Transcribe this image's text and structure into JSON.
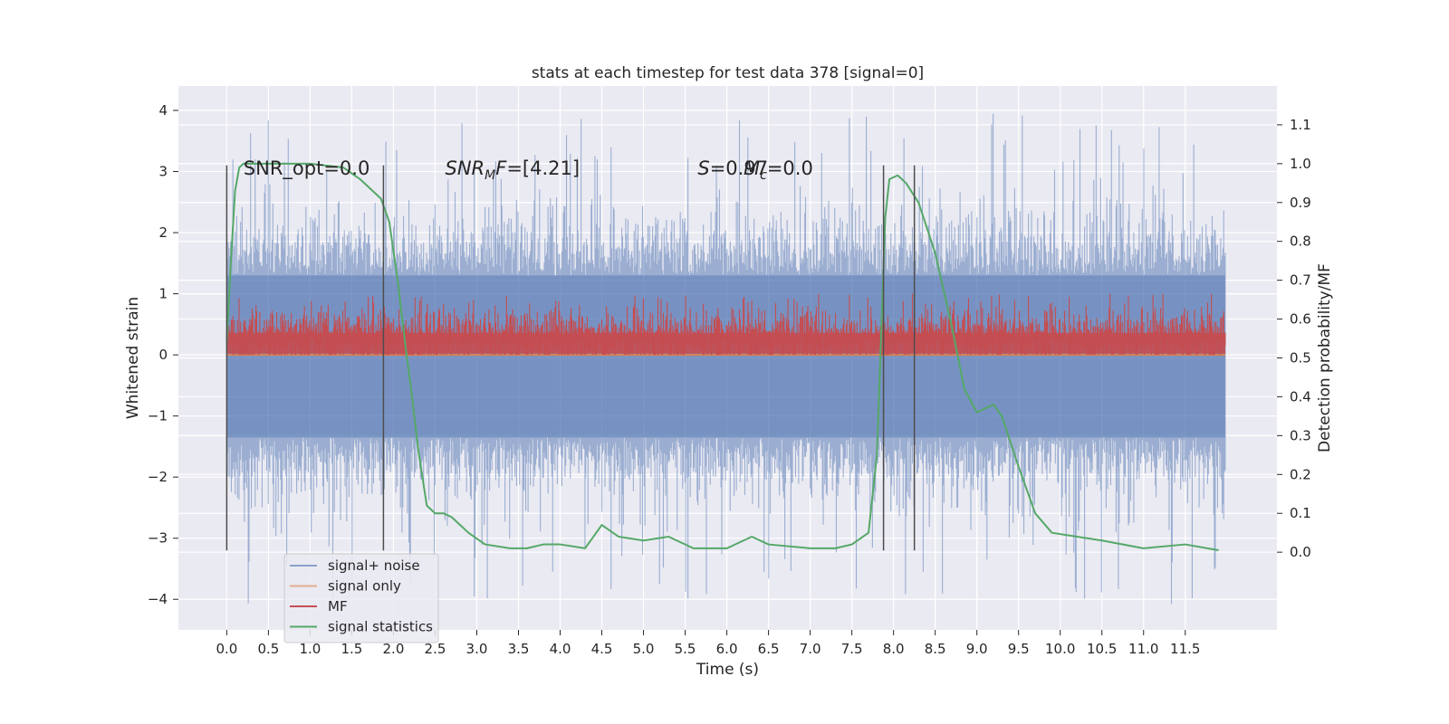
{
  "chart_data": {
    "type": "line",
    "title": "stats at each timestep for test data 378 [signal=0]",
    "xlabel": "Time (s)",
    "ylabel_left": "Whitened strain",
    "ylabel_right": "Detection probability/MF",
    "xlim": [
      -0.58,
      12.6
    ],
    "ylim_left": [
      -4.5,
      4.4
    ],
    "ylim_right": [
      -0.2,
      1.2
    ],
    "x_ticks": [
      0.0,
      0.5,
      1.0,
      1.5,
      2.0,
      2.5,
      3.0,
      3.5,
      4.0,
      4.5,
      5.0,
      5.5,
      6.0,
      6.5,
      7.0,
      7.5,
      8.0,
      8.5,
      9.0,
      9.5,
      10.0,
      10.5,
      11.0,
      11.5
    ],
    "x_tick_labels": [
      "0.0",
      "0.5",
      "1.0",
      "1.5",
      "2.0",
      "2.5",
      "3.0",
      "3.5",
      "4.0",
      "4.5",
      "5.0",
      "5.5",
      "6.0",
      "6.5",
      "7.0",
      "7.5",
      "8.0",
      "8.5",
      "9.0",
      "9.5",
      "10.0",
      "10.5",
      "11.0",
      "11.5"
    ],
    "y_left_ticks": [
      -4,
      -3,
      -2,
      -1,
      0,
      1,
      2,
      3,
      4
    ],
    "y_left_tick_labels": [
      "−4",
      "−3",
      "−2",
      "−1",
      "0",
      "1",
      "2",
      "3",
      "4"
    ],
    "y_right_ticks": [
      0.0,
      0.1,
      0.2,
      0.3,
      0.4,
      0.5,
      0.6,
      0.7,
      0.8,
      0.9,
      1.0,
      1.1
    ],
    "y_right_tick_labels": [
      "0.0",
      "0.1",
      "0.2",
      "0.3",
      "0.4",
      "0.5",
      "0.6",
      "0.7",
      "0.8",
      "0.9",
      "1.0",
      "1.1"
    ],
    "grid": true,
    "legend_placement": "lower-left",
    "legend": [
      {
        "label": "signal+ noise",
        "color": "#4c72b0"
      },
      {
        "label": "signal only",
        "color": "#dd8452"
      },
      {
        "label": "MF",
        "color": "#c44e52"
      },
      {
        "label": "signal statistics",
        "color": "#55a868"
      }
    ],
    "annotations": {
      "snr_opt": "SNR_opt=0.0",
      "snr_mf_var": "SNR",
      "snr_mf_sub": "M",
      "snr_mf_var2": "F",
      "snr_mf_rest": "=[4.21]",
      "s_var": "S",
      "s_rest": "=0.97",
      "mc_var": "M",
      "mc_sub": "c",
      "mc_rest": "=0.0"
    },
    "vertical_lines_x": [
      0.0,
      1.88,
      7.88,
      8.25
    ],
    "vertical_lines_ylim": [
      -3.2,
      3.1
    ],
    "series": [
      {
        "name": "signal+ noise",
        "axis": "left",
        "color": "#4c72b0",
        "style": "noise",
        "x_range": [
          0.0,
          11.98
        ],
        "envelope": {
          "p_lo": -1.35,
          "p_hi": 1.3,
          "peak_max": 3.95,
          "peak_min": -4.08
        }
      },
      {
        "name": "signal only",
        "axis": "left",
        "color": "#dd8452",
        "x": [
          0.0,
          11.98
        ],
        "y": [
          0.0,
          0.0
        ]
      },
      {
        "name": "MF",
        "axis": "left",
        "color": "#c44e52",
        "style": "noise",
        "x_range": [
          0.0,
          11.98
        ],
        "envelope": {
          "center": 0.28,
          "p_lo": 0.0,
          "p_hi": 0.55,
          "peak_max": 1.0
        }
      },
      {
        "name": "signal statistics",
        "axis": "right",
        "color": "#55a868",
        "x": [
          0.0,
          0.05,
          0.1,
          0.15,
          0.2,
          0.3,
          0.5,
          1.0,
          1.4,
          1.6,
          1.75,
          1.85,
          1.95,
          2.05,
          2.15,
          2.2,
          2.3,
          2.4,
          2.5,
          2.6,
          2.7,
          2.9,
          3.1,
          3.4,
          3.6,
          3.8,
          4.0,
          4.3,
          4.5,
          4.7,
          5.0,
          5.3,
          5.6,
          6.0,
          6.3,
          6.5,
          7.0,
          7.3,
          7.5,
          7.7,
          7.8,
          7.85,
          7.9,
          7.95,
          8.05,
          8.15,
          8.3,
          8.5,
          8.7,
          8.85,
          9.0,
          9.1,
          9.2,
          9.3,
          9.5,
          9.7,
          9.9,
          10.2,
          10.5,
          11.0,
          11.5,
          11.9
        ],
        "y": [
          0.54,
          0.75,
          0.93,
          0.99,
          1.0,
          1.0,
          1.0,
          1.0,
          0.99,
          0.96,
          0.93,
          0.91,
          0.85,
          0.7,
          0.52,
          0.44,
          0.26,
          0.12,
          0.1,
          0.1,
          0.09,
          0.05,
          0.02,
          0.01,
          0.01,
          0.02,
          0.02,
          0.01,
          0.07,
          0.04,
          0.03,
          0.04,
          0.01,
          0.01,
          0.04,
          0.02,
          0.01,
          0.01,
          0.02,
          0.05,
          0.25,
          0.55,
          0.86,
          0.96,
          0.97,
          0.95,
          0.9,
          0.77,
          0.58,
          0.42,
          0.36,
          0.37,
          0.38,
          0.35,
          0.22,
          0.1,
          0.05,
          0.04,
          0.03,
          0.01,
          0.02,
          0.005
        ]
      }
    ]
  }
}
